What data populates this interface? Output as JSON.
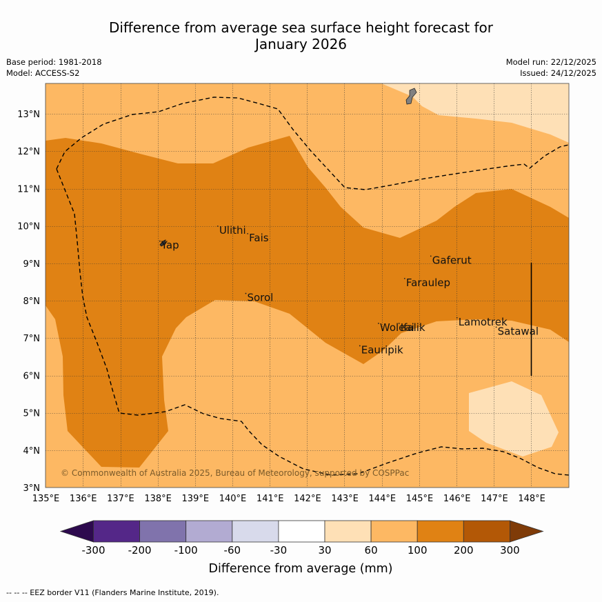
{
  "title_line1": "Difference from average sea surface height forecast for",
  "title_line2": "January 2026",
  "meta": {
    "base_period": "Base period: 1981-2018",
    "model": "Model: ACCESS-S2",
    "model_run": "Model run: 22/12/2025",
    "issued": "Issued: 24/12/2025"
  },
  "map": {
    "lon_range": [
      135,
      149
    ],
    "lat_range": [
      3,
      13.8
    ],
    "lon_ticks": [
      "135°E",
      "136°E",
      "137°E",
      "138°E",
      "139°E",
      "140°E",
      "141°E",
      "142°E",
      "143°E",
      "144°E",
      "145°E",
      "146°E",
      "147°E",
      "148°E"
    ],
    "lat_ticks": [
      "3°N",
      "4°N",
      "5°N",
      "6°N",
      "7°N",
      "8°N",
      "9°N",
      "10°N",
      "11°N",
      "12°N",
      "13°N"
    ],
    "places": [
      {
        "name": "Yap",
        "lon": 138.05,
        "lat": 9.5
      },
      {
        "name": "Ulithi",
        "lon": 139.6,
        "lat": 9.9
      },
      {
        "name": "Fais",
        "lon": 140.4,
        "lat": 9.7
      },
      {
        "name": "Gaferut",
        "lon": 145.3,
        "lat": 9.1
      },
      {
        "name": "Faraulep",
        "lon": 144.6,
        "lat": 8.5
      },
      {
        "name": "Sorol",
        "lon": 140.35,
        "lat": 8.1
      },
      {
        "name": "Woleai",
        "lon": 143.9,
        "lat": 7.3
      },
      {
        "name": "Ifalik",
        "lon": 144.45,
        "lat": 7.3
      },
      {
        "name": "Lamotrek",
        "lon": 146.0,
        "lat": 7.45
      },
      {
        "name": "Satawal",
        "lon": 147.05,
        "lat": 7.2
      },
      {
        "name": "Eauripik",
        "lon": 143.4,
        "lat": 6.7
      }
    ],
    "attribution": "© Commonwealth of Australia 2025, Bureau of Meteorology, supported by COSPPac"
  },
  "colorbar": {
    "colors": [
      "#2d0a4e",
      "#542788",
      "#8073ac",
      "#b2abd2",
      "#d8daeb",
      "#ffffff",
      "#fee0b6",
      "#fdb863",
      "#e08214",
      "#b35806",
      "#7f3b08"
    ],
    "labels": [
      "-300",
      "-200",
      "-100",
      "-60",
      "-30",
      "30",
      "60",
      "100",
      "200",
      "300"
    ],
    "title": "Difference from average (mm)"
  },
  "footnote": "--  --  -- EEZ border V11 (Flanders Marine Institute, 2019)."
}
